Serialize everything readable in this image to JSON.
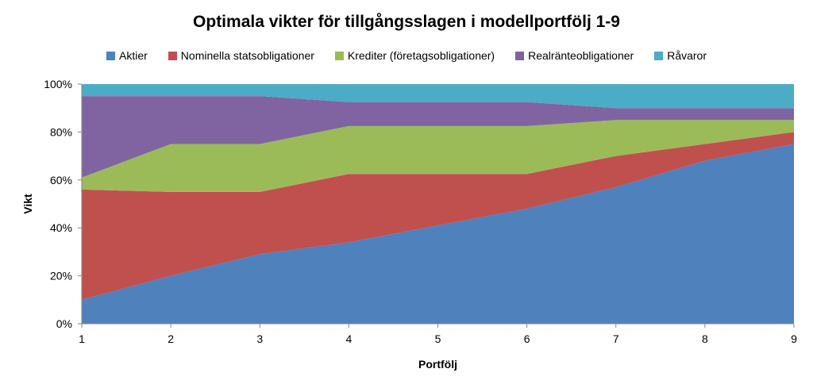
{
  "chart_data": {
    "type": "area",
    "stacked": true,
    "title": "Optimala vikter för tillgångsslagen i modellportfölj 1-9",
    "xlabel": "Portfölj",
    "ylabel": "Vikt",
    "x": [
      1,
      2,
      3,
      4,
      5,
      6,
      7,
      8,
      9
    ],
    "xtick_labels": [
      "1",
      "2",
      "3",
      "4",
      "5",
      "6",
      "7",
      "8",
      "9"
    ],
    "ytick_labels": [
      "0%",
      "20%",
      "40%",
      "60%",
      "80%",
      "100%"
    ],
    "ylim": [
      0,
      100
    ],
    "grid": false,
    "legend_position": "top",
    "series": [
      {
        "name": "Aktier",
        "color": "#4F81BD",
        "values": [
          10,
          20,
          29,
          34,
          41,
          48,
          57,
          68,
          75
        ]
      },
      {
        "name": "Nominella statsobligationer",
        "color": "#C0504D",
        "values": [
          46,
          35,
          26,
          28.5,
          21.5,
          14.5,
          13,
          7,
          5
        ]
      },
      {
        "name": "Krediter (företagsobligationer)",
        "color": "#9BBB59",
        "values": [
          5,
          20,
          20,
          20,
          20,
          20,
          15,
          10,
          5
        ]
      },
      {
        "name": "Realränteobligationer",
        "color": "#8064A2",
        "values": [
          34,
          20,
          20,
          10,
          10,
          10,
          5,
          5,
          5
        ]
      },
      {
        "name": "Råvaror",
        "color": "#4BACC6",
        "values": [
          5,
          5,
          5,
          7.5,
          7.5,
          7.5,
          10,
          10,
          10
        ]
      }
    ]
  }
}
